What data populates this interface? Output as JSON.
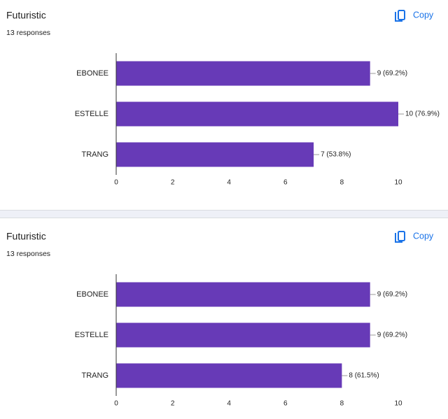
{
  "chart_data": [
    {
      "type": "bar",
      "orientation": "horizontal",
      "title": "Futuristic",
      "subtitle": "13 responses",
      "button": "Copy",
      "categories": [
        "EBONEE",
        "ESTELLE",
        "TRANG"
      ],
      "values": [
        9,
        10,
        7
      ],
      "value_labels": [
        "9 (69.2%)",
        "10 (76.9%)",
        "7 (53.8%)"
      ],
      "color": "#673ab7",
      "xlim": [
        0,
        10
      ],
      "xticks": [
        0,
        2,
        4,
        6,
        8,
        10
      ]
    },
    {
      "type": "bar",
      "orientation": "horizontal",
      "title": "Futuristic",
      "subtitle": "13 responses",
      "button": "Copy",
      "categories": [
        "EBONEE",
        "ESTELLE",
        "TRANG"
      ],
      "values": [
        9,
        9,
        8
      ],
      "value_labels": [
        "9 (69.2%)",
        "9 (69.2%)",
        "8 (61.5%)"
      ],
      "color": "#673ab7",
      "xlim": [
        0,
        10
      ],
      "xticks": [
        0,
        2,
        4,
        6,
        8,
        10
      ]
    }
  ]
}
